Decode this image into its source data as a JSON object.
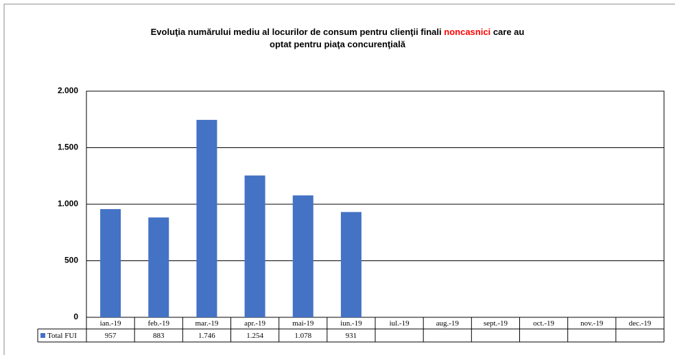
{
  "chart_data": {
    "type": "bar",
    "title_parts": [
      "Evoluţia numărului mediu al locurilor de consum pentru clienţii finali",
      "noncasnici",
      "care au",
      "optat pentru piaţa concurenţială"
    ],
    "title_highlight_color": "#ff0000",
    "categories": [
      "ian.-19",
      "feb.-19",
      "mar.-19",
      "apr.-19",
      "mai-19",
      "iun.-19",
      "iul.-19",
      "aug.-19",
      "sept.-19",
      "oct.-19",
      "nov.-19",
      "dec.-19"
    ],
    "series": [
      {
        "name": "Total FUI",
        "color": "#4472c4",
        "values": [
          957,
          883,
          1746,
          1254,
          1078,
          931,
          null,
          null,
          null,
          null,
          null,
          null
        ],
        "value_labels": [
          "957",
          "883",
          "1.746",
          "1.254",
          "1.078",
          "931",
          null,
          null,
          null,
          null,
          null,
          null
        ]
      }
    ],
    "ylim": [
      0,
      2000
    ],
    "yticks": [
      0,
      500,
      {
        "value": 1000,
        "label": "1.000"
      },
      {
        "value": 1500,
        "label": "1.500"
      },
      {
        "value": 2000,
        "label": "2.000"
      }
    ],
    "grid": true
  }
}
